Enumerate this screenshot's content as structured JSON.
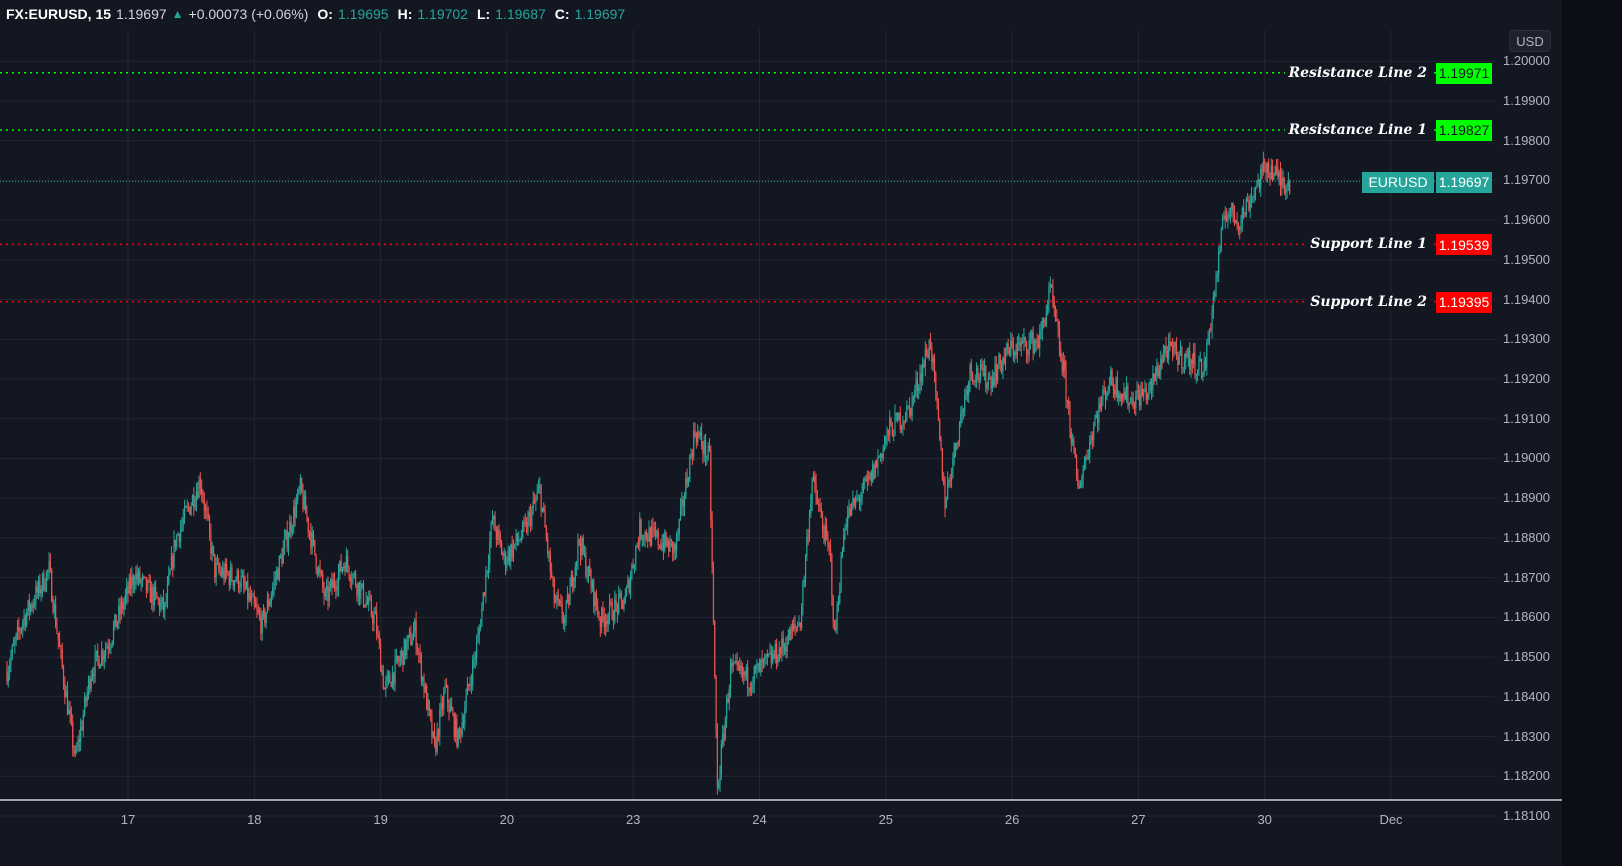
{
  "header": {
    "symbol": "FX:EURUSD, 15",
    "last": "1.19697",
    "change_icon": "triangle-up",
    "change": "+0.00073 (+0.06%)",
    "o_label": "O:",
    "o": "1.19695",
    "h_label": "H:",
    "h": "1.19702",
    "l_label": "L:",
    "l": "1.19687",
    "c_label": "C:",
    "c": "1.19697"
  },
  "currency": "USD",
  "colors": {
    "background": "#131722",
    "up": "#26a69a",
    "down": "#ef5350",
    "resistance": "#00ff00",
    "support": "#ff0000",
    "grid": "#242733"
  },
  "chart_data": {
    "type": "candlestick",
    "interval": "15",
    "ylim": [
      1.1805,
      1.2007
    ],
    "grid": true,
    "y_ticks": [
      "1.18100",
      "1.18200",
      "1.18300",
      "1.18400",
      "1.18500",
      "1.18600",
      "1.18700",
      "1.18800",
      "1.18900",
      "1.19000",
      "1.19100",
      "1.19200",
      "1.19300",
      "1.19400",
      "1.19500",
      "1.19600",
      "1.19700",
      "1.19800",
      "1.19900",
      "1.20000"
    ],
    "x_ticks": [
      "17",
      "18",
      "19",
      "20",
      "23",
      "24",
      "25",
      "26",
      "27",
      "30",
      "Dec"
    ],
    "trading_days": [
      "Nov 16",
      "Nov 17",
      "Nov 18",
      "Nov 19",
      "Nov 20",
      "Nov 23",
      "Nov 24",
      "Nov 25",
      "Nov 26",
      "Nov 27",
      "Nov 30",
      "Dec 1"
    ],
    "price_path": [
      [
        "Nov 16 01:00",
        1.18467
      ],
      [
        "Nov 16 04:00",
        1.18593
      ],
      [
        "Nov 16 09:00",
        1.18719
      ],
      [
        "Nov 16 11:00",
        1.18518
      ],
      [
        "Nov 16 14:00",
        1.18241
      ],
      [
        "Nov 16 17:00",
        1.18467
      ],
      [
        "Nov 16 20:30",
        1.18543
      ],
      [
        "Nov 17 01:15",
        1.18707
      ],
      [
        "Nov 17 07:00",
        1.18618
      ],
      [
        "Nov 17 09:00",
        1.18795
      ],
      [
        "Nov 17 13:45",
        1.18946
      ],
      [
        "Nov 17 16:30",
        1.18719
      ],
      [
        "Nov 17 21:15",
        1.18694
      ],
      [
        "Nov 18 01:30",
        1.18581
      ],
      [
        "Nov 18 08:45",
        1.18921
      ],
      [
        "Nov 18 13:30",
        1.18644
      ],
      [
        "Nov 18 17:15",
        1.18744
      ],
      [
        "Nov 18 23:00",
        1.18593
      ],
      [
        "Nov 19 00:45",
        1.18417
      ],
      [
        "Nov 19 06:30",
        1.18568
      ],
      [
        "Nov 19 10:15",
        1.18266
      ],
      [
        "Nov 19 12:15",
        1.18417
      ],
      [
        "Nov 19 14:45",
        1.18291
      ],
      [
        "Nov 19 18:30",
        1.18543
      ],
      [
        "Nov 19 21:15",
        1.18845
      ],
      [
        "Nov 19 23:30",
        1.18744
      ],
      [
        "Nov 20 03:30",
        1.1882
      ],
      [
        "Nov 20 06:15",
        1.18921
      ],
      [
        "Nov 20 09:00",
        1.18644
      ],
      [
        "Nov 20 11:00",
        1.18593
      ],
      [
        "Nov 20 13:45",
        1.18795
      ],
      [
        "Nov 20 17:45",
        1.18593
      ],
      [
        "Nov 20 22:30",
        1.18644
      ],
      [
        "Nov 23 01:15",
        1.1882
      ],
      [
        "Nov 23 08:00",
        1.1877
      ],
      [
        "Nov 23 11:45",
        1.19072
      ],
      [
        "Nov 23 14:30",
        1.18996
      ],
      [
        "Nov 23 15:00",
        1.18719
      ],
      [
        "Nov 23 16:00",
        1.18165
      ],
      [
        "Nov 23 18:30",
        1.18467
      ],
      [
        "Nov 23 22:15",
        1.18445
      ],
      [
        "Nov 24 04:00",
        1.18518
      ],
      [
        "Nov 24 07:45",
        1.18593
      ],
      [
        "Nov 24 10:00",
        1.18946
      ],
      [
        "Nov 24 13:30",
        1.18744
      ],
      [
        "Nov 24 14:15",
        1.18543
      ],
      [
        "Nov 24 16:15",
        1.18845
      ],
      [
        "Nov 24 21:00",
        1.18946
      ],
      [
        "Nov 25 00:45",
        1.19072
      ],
      [
        "Nov 25 04:30",
        1.19122
      ],
      [
        "Nov 25 08:30",
        1.19298
      ],
      [
        "Nov 25 11:15",
        1.18895
      ],
      [
        "Nov 25 16:00",
        1.19223
      ],
      [
        "Nov 25 19:45",
        1.19198
      ],
      [
        "Nov 25 23:30",
        1.19273
      ],
      [
        "Nov 26 05:15",
        1.19298
      ],
      [
        "Nov 26 07:15",
        1.19424
      ],
      [
        "Nov 26 10:00",
        1.19198
      ],
      [
        "Nov 26 12:30",
        1.18921
      ],
      [
        "Nov 26 15:45",
        1.19097
      ],
      [
        "Nov 26 18:30",
        1.19198
      ],
      [
        "Nov 26 22:30",
        1.19147
      ],
      [
        "Nov 27 02:15",
        1.19172
      ],
      [
        "Nov 27 05:00",
        1.19273
      ],
      [
        "Nov 27 09:45",
        1.19248
      ],
      [
        "Nov 27 12:30",
        1.19223
      ],
      [
        "Nov 27 14:30",
        1.19424
      ],
      [
        "Nov 27 16:30",
        1.19626
      ],
      [
        "Nov 27 19:15",
        1.196
      ],
      [
        "Nov 27 22:00",
        1.19676
      ],
      [
        "Nov 30 00:30",
        1.19739
      ],
      [
        "Nov 30 03:00",
        1.19699
      ],
      [
        "Nov 30 04:45",
        1.19697
      ]
    ],
    "last_price": {
      "label": "EURUSD",
      "value": "1.19697"
    },
    "horizontal_lines": [
      {
        "name": "Resistance Line 2",
        "value": "1.19971",
        "kind": "resistance"
      },
      {
        "name": "Resistance Line 1",
        "value": "1.19827",
        "kind": "resistance"
      },
      {
        "name": "Support Line 1",
        "value": "1.19539",
        "kind": "support"
      },
      {
        "name": "Support Line 2",
        "value": "1.19395",
        "kind": "support"
      }
    ]
  }
}
